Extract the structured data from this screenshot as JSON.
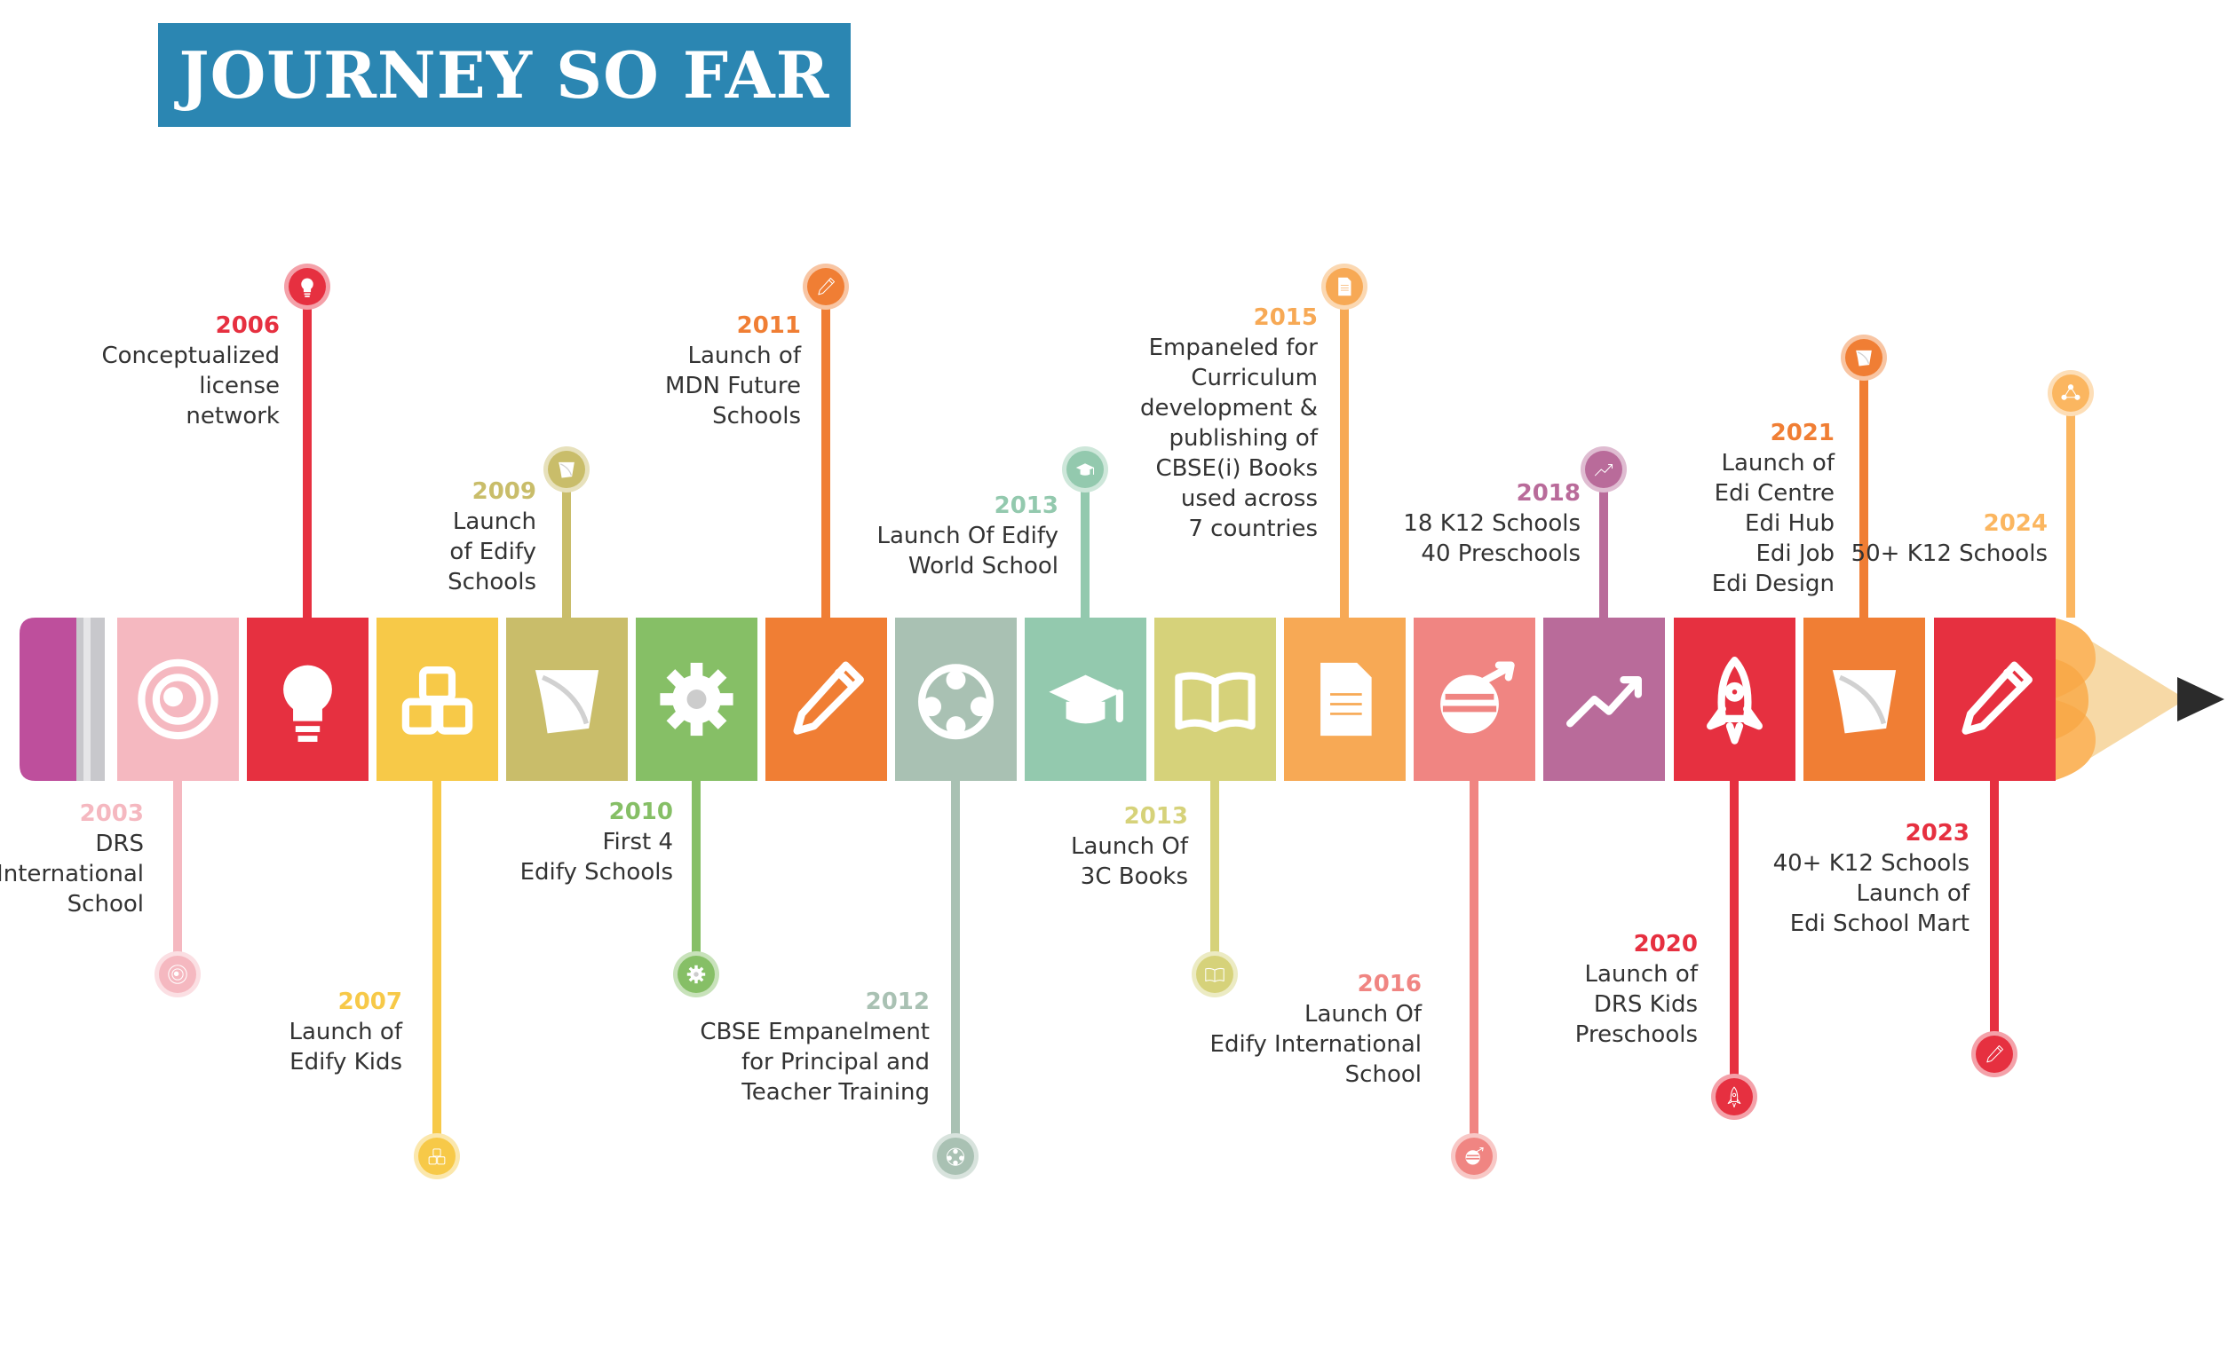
{
  "title": "JOURNEY SO FAR",
  "milestones": [
    {
      "year": "2003",
      "lines": [
        "DRS",
        "International",
        "School"
      ],
      "color": "#f5b8c0",
      "icon": "swirl-icon"
    },
    {
      "year": "2006",
      "lines": [
        "Conceptualized",
        "license",
        "network"
      ],
      "color": "#e63040",
      "icon": "lightbulb-icon"
    },
    {
      "year": "2007",
      "lines": [
        "Launch of",
        "Edify Kids"
      ],
      "color": "#f7c948",
      "icon": "abc-blocks-icon"
    },
    {
      "year": "2009",
      "lines": [
        "Launch",
        "of Edify",
        "Schools"
      ],
      "color": "#c9bd6a",
      "icon": "edify-logo-icon"
    },
    {
      "year": "2010",
      "lines": [
        "First 4",
        "Edify Schools"
      ],
      "color": "#86bf66",
      "icon": "gear-icon"
    },
    {
      "year": "2011",
      "lines": [
        "Launch of",
        "MDN Future",
        "Schools"
      ],
      "color": "#f07e34",
      "icon": "pencil-icon"
    },
    {
      "year": "2012",
      "lines": [
        "CBSE Empanelment",
        "for Principal and",
        "Teacher Training"
      ],
      "color": "#a9c1b3",
      "icon": "people-network-icon"
    },
    {
      "year": "2013",
      "lines": [
        "Launch Of Edify",
        "World School"
      ],
      "color": "#93c9ae",
      "icon": "graduation-cap-icon"
    },
    {
      "year": "2013",
      "lines": [
        "Launch Of",
        "3C Books"
      ],
      "color": "#d6d27a",
      "icon": "open-book-icon"
    },
    {
      "year": "2015",
      "lines": [
        "Empaneled for",
        "Curriculum",
        "development &",
        "publishing of",
        "CBSE(i) Books",
        "used across",
        "7 countries"
      ],
      "color": "#f7a955",
      "icon": "document-icon"
    },
    {
      "year": "2016",
      "lines": [
        "Launch Of",
        "Edify International",
        "School"
      ],
      "color": "#f08582",
      "icon": "globe-arrow-icon"
    },
    {
      "year": "2018",
      "lines": [
        "18 K12 Schools",
        "40 Preschools"
      ],
      "color": "#b96b9a",
      "icon": "trend-up-icon"
    },
    {
      "year": "2020",
      "lines": [
        "Launch of",
        "DRS Kids",
        "Preschools"
      ],
      "color": "#e63040",
      "icon": "rocket-icon"
    },
    {
      "year": "2021",
      "lines": [
        "Launch of",
        "Edi Centre",
        "Edi Hub",
        "Edi Job",
        "Edi Design"
      ],
      "color": "#f07e34",
      "icon": "edify-logo-icon"
    },
    {
      "year": "2023",
      "lines": [
        "40+ K12 Schools",
        "Launch of",
        "Edi School Mart"
      ],
      "color": "#e63040",
      "icon": "pencil-icon"
    },
    {
      "year": "2024",
      "lines": [
        "50+ K12 Schools"
      ],
      "color": "#fbb660",
      "icon": "network-icon"
    }
  ]
}
